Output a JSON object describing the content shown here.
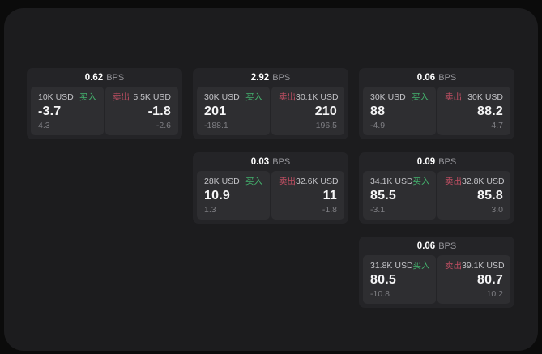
{
  "labels": {
    "bps_unit": "BPS",
    "buy": "买入",
    "sell": "卖出"
  },
  "colors": {
    "outer_bg": "#0b0b0b",
    "page_bg": "#1c1c1e",
    "card_bg": "#242427",
    "panel_bg": "#2e2e31",
    "buy_green": "#44b46e",
    "sell_red": "#c04f63"
  },
  "cards": [
    {
      "row": 0,
      "col": 0,
      "bps": "0.62",
      "buy": {
        "notional": "10K USD",
        "price": "-3.7",
        "change": "4.3"
      },
      "sell": {
        "notional": "5.5K USD",
        "price": "-1.8",
        "change": "-2.6"
      }
    },
    {
      "row": 0,
      "col": 1,
      "bps": "2.92",
      "buy": {
        "notional": "30K USD",
        "price": "201",
        "change": "-188.1"
      },
      "sell": {
        "notional": "30.1K USD",
        "price": "210",
        "change": "196.5"
      }
    },
    {
      "row": 0,
      "col": 2,
      "bps": "0.06",
      "buy": {
        "notional": "30K USD",
        "price": "88",
        "change": "-4.9"
      },
      "sell": {
        "notional": "30K USD",
        "price": "88.2",
        "change": "4.7"
      }
    },
    {
      "row": 1,
      "col": 1,
      "bps": "0.03",
      "buy": {
        "notional": "28K USD",
        "price": "10.9",
        "change": "1.3"
      },
      "sell": {
        "notional": "32.6K USD",
        "price": "11",
        "change": "-1.8"
      }
    },
    {
      "row": 1,
      "col": 2,
      "bps": "0.09",
      "buy": {
        "notional": "34.1K USD",
        "price": "85.5",
        "change": "-3.1"
      },
      "sell": {
        "notional": "32.8K USD",
        "price": "85.8",
        "change": "3.0"
      }
    },
    {
      "row": 2,
      "col": 2,
      "bps": "0.06",
      "buy": {
        "notional": "31.8K USD",
        "price": "80.5",
        "change": "-10.8"
      },
      "sell": {
        "notional": "39.1K USD",
        "price": "80.7",
        "change": "10.2"
      }
    }
  ]
}
